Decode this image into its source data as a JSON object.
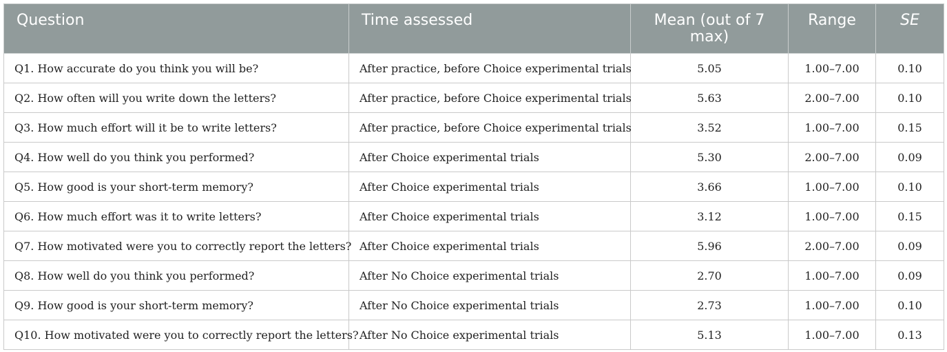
{
  "table": {
    "headers": [
      {
        "label": "Question",
        "italic": false
      },
      {
        "label": "Time assessed",
        "italic": false
      },
      {
        "label": "Mean (out of 7 max)",
        "italic": false
      },
      {
        "label": "Range",
        "italic": false
      },
      {
        "label": "SE",
        "italic": true
      }
    ],
    "rows": [
      {
        "question": "Q1. How accurate do you think you will be?",
        "time": "After practice, before Choice experimental trials",
        "mean": "5.05",
        "range": "1.00–7.00",
        "se": "0.10"
      },
      {
        "question": "Q2. How often will you write down the letters?",
        "time": "After practice, before Choice experimental trials",
        "mean": "5.63",
        "range": "2.00–7.00",
        "se": "0.10"
      },
      {
        "question": "Q3. How much effort will it be to write letters?",
        "time": "After practice, before Choice experimental trials",
        "mean": "3.52",
        "range": "1.00–7.00",
        "se": "0.15"
      },
      {
        "question": "Q4. How well do you think you performed?",
        "time": "After Choice experimental trials",
        "mean": "5.30",
        "range": "2.00–7.00",
        "se": "0.09"
      },
      {
        "question": "Q5. How good is your short-term memory?",
        "time": "After Choice experimental trials",
        "mean": "3.66",
        "range": "1.00–7.00",
        "se": "0.10"
      },
      {
        "question": "Q6. How much effort was it to write letters?",
        "time": "After Choice experimental trials",
        "mean": "3.12",
        "range": "1.00–7.00",
        "se": "0.15"
      },
      {
        "question": "Q7. How motivated were you to correctly report the letters?",
        "time": "After Choice experimental trials",
        "mean": "5.96",
        "range": "2.00–7.00",
        "se": "0.09"
      },
      {
        "question": "Q8. How well do you think you performed?",
        "time": "After No Choice experimental trials",
        "mean": "2.70",
        "range": "1.00–7.00",
        "se": "0.09"
      },
      {
        "question": "Q9. How good is your short-term memory?",
        "time": "After No Choice experimental trials",
        "mean": "2.73",
        "range": "1.00–7.00",
        "se": "0.10"
      },
      {
        "question": "Q10. How motivated were you to correctly report the letters?",
        "time": "After No Choice experimental trials",
        "mean": "5.13",
        "range": "1.00–7.00",
        "se": "0.13"
      }
    ]
  },
  "colors": {
    "header_background": "#919b9b",
    "header_text": "#ffffff",
    "grid_lines": "#c9c9c9"
  }
}
